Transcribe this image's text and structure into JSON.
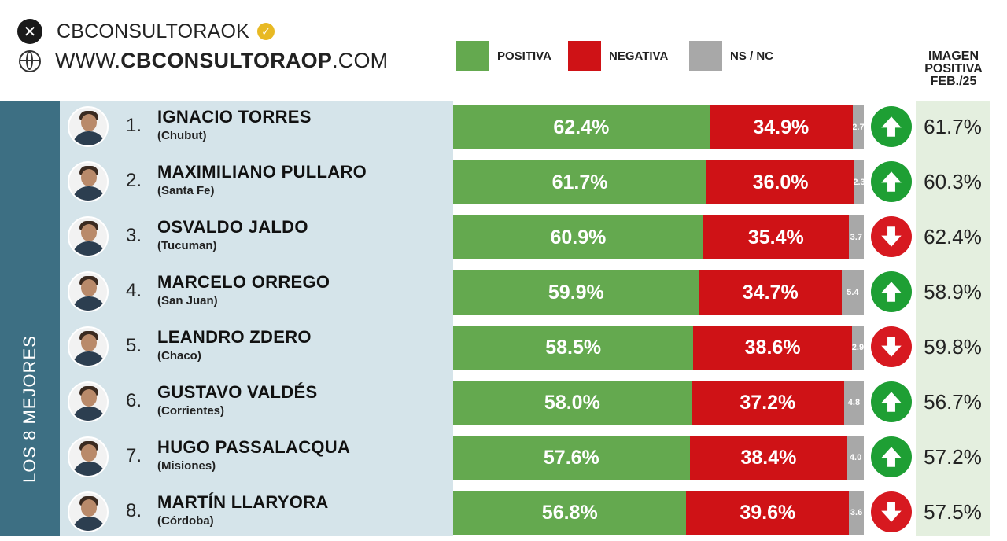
{
  "header": {
    "x_icon": "x-logo-icon",
    "handle": "CBCONSULTORAOK",
    "verified_icon": "verified-badge-icon",
    "globe_icon": "globe-icon",
    "site_prefix": "WWW.",
    "site_bold": "CBCONSULTORAOP",
    "site_suffix": ".COM"
  },
  "sidebar_label": "LOS 8 MEJORES",
  "chart_data": {
    "type": "bar",
    "stacked": true,
    "orientation": "horizontal",
    "legend": [
      {
        "label": "POSITIVA",
        "color": "#64a94f"
      },
      {
        "label": "NEGATIVA",
        "color": "#cf1216"
      },
      {
        "label": "NS / NC",
        "color": "#a8a8a8"
      }
    ],
    "legend_placement": "top",
    "prev_column_title_lines": [
      "IMAGEN",
      "POSITIVA",
      "FEB./25"
    ],
    "rows": [
      {
        "rank": "1.",
        "name": "IGNACIO TORRES",
        "province": "(Chubut)",
        "positiva": 62.4,
        "negativa": 34.9,
        "nsnc": 2.7,
        "positiva_label": "62.4%",
        "negativa_label": "34.9%",
        "nsnc_label": "2.7",
        "trend": "up",
        "prev_label": "61.7%"
      },
      {
        "rank": "2.",
        "name": "MAXIMILIANO PULLARO",
        "province": "(Santa Fe)",
        "positiva": 61.7,
        "negativa": 36.0,
        "nsnc": 2.3,
        "positiva_label": "61.7%",
        "negativa_label": "36.0%",
        "nsnc_label": "2.3",
        "trend": "up",
        "prev_label": "60.3%"
      },
      {
        "rank": "3.",
        "name": "OSVALDO JALDO",
        "province": "(Tucuman)",
        "positiva": 60.9,
        "negativa": 35.4,
        "nsnc": 3.7,
        "positiva_label": "60.9%",
        "negativa_label": "35.4%",
        "nsnc_label": "3.7",
        "trend": "down",
        "prev_label": "62.4%"
      },
      {
        "rank": "4.",
        "name": "MARCELO ORREGO",
        "province": "(San Juan)",
        "positiva": 59.9,
        "negativa": 34.7,
        "nsnc": 5.4,
        "positiva_label": "59.9%",
        "negativa_label": "34.7%",
        "nsnc_label": "5.4",
        "trend": "up",
        "prev_label": "58.9%"
      },
      {
        "rank": "5.",
        "name": "LEANDRO ZDERO",
        "province": "(Chaco)",
        "positiva": 58.5,
        "negativa": 38.6,
        "nsnc": 2.9,
        "positiva_label": "58.5%",
        "negativa_label": "38.6%",
        "nsnc_label": "2.9",
        "trend": "down",
        "prev_label": "59.8%"
      },
      {
        "rank": "6.",
        "name": "GUSTAVO VALDÉS",
        "province": "(Corrientes)",
        "positiva": 58.0,
        "negativa": 37.2,
        "nsnc": 4.8,
        "positiva_label": "58.0%",
        "negativa_label": "37.2%",
        "nsnc_label": "4.8",
        "trend": "up",
        "prev_label": "56.7%"
      },
      {
        "rank": "7.",
        "name": "HUGO PASSALACQUA",
        "province": "(Misiones)",
        "positiva": 57.6,
        "negativa": 38.4,
        "nsnc": 4.0,
        "positiva_label": "57.6%",
        "negativa_label": "38.4%",
        "nsnc_label": "4.0",
        "trend": "up",
        "prev_label": "57.2%"
      },
      {
        "rank": "8.",
        "name": "MARTÍN LLARYORA",
        "province": "(Córdoba)",
        "positiva": 56.8,
        "negativa": 39.6,
        "nsnc": 3.6,
        "positiva_label": "56.8%",
        "negativa_label": "39.6%",
        "nsnc_label": "3.6",
        "trend": "down",
        "prev_label": "57.5%"
      }
    ]
  }
}
